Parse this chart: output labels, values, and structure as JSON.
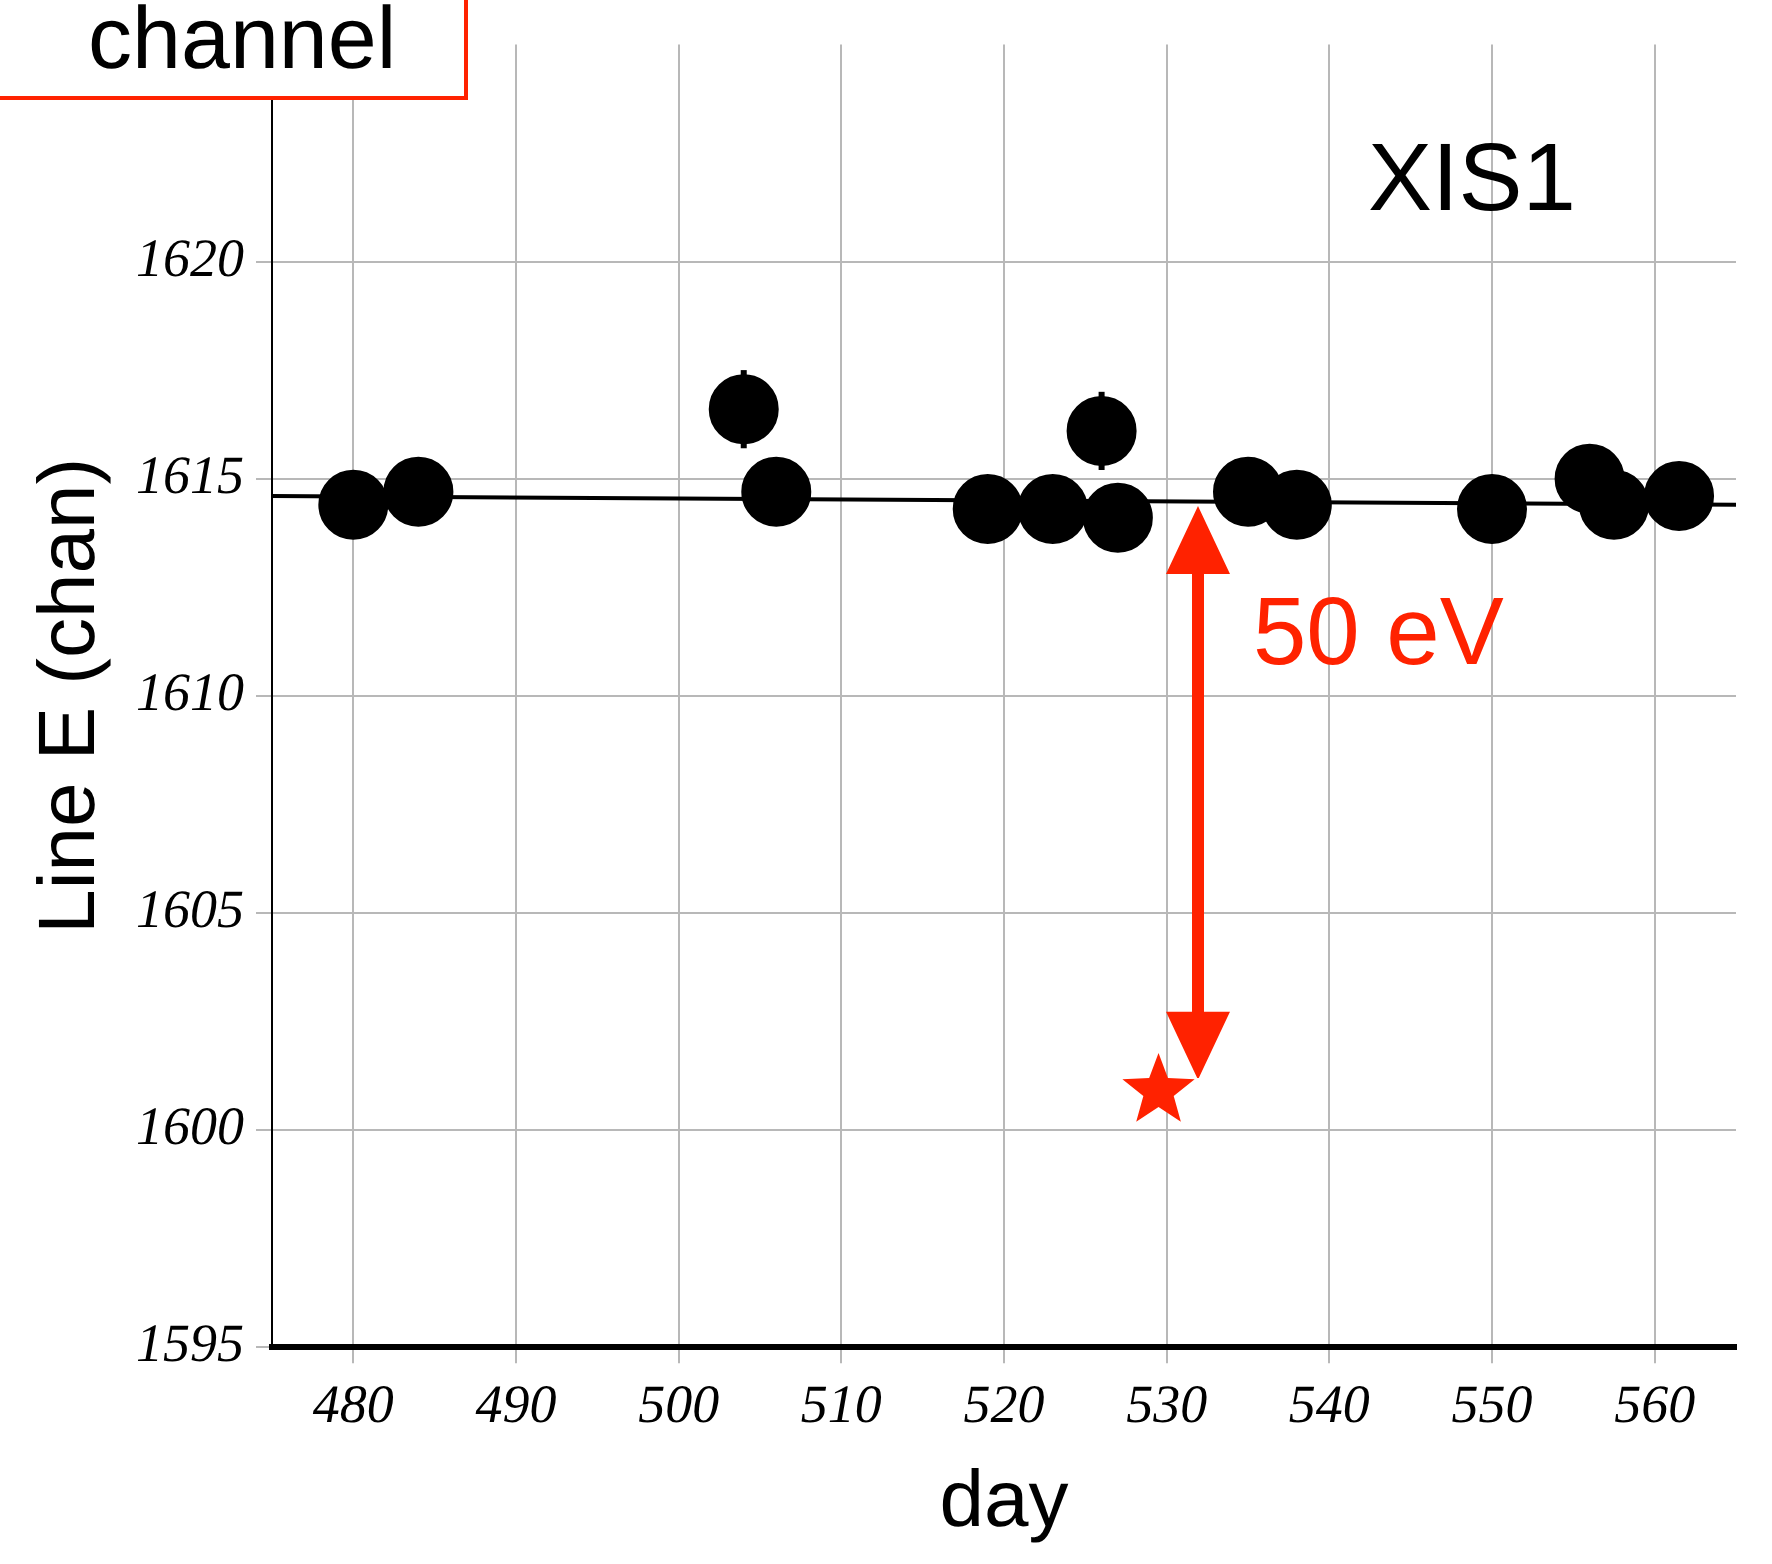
{
  "chart_data": {
    "type": "scatter",
    "xlabel": "day",
    "ylabel": "Line E (chan)",
    "xlim": [
      475,
      565
    ],
    "xticks": [
      480,
      490,
      500,
      510,
      520,
      530,
      540,
      550,
      560
    ],
    "ylim": [
      1595,
      1625
    ],
    "yticks": [
      1595,
      1600,
      1605,
      1610,
      1615,
      1620
    ],
    "grid": true,
    "legend": false,
    "series": [
      {
        "type": "line",
        "color": "#000000",
        "marker": "none",
        "line_style": "solid",
        "x": [
          475,
          565
        ],
        "values": [
          1614.6,
          1614.4
        ]
      },
      {
        "color": "#000000",
        "marker": "circle",
        "x": [
          480,
          484,
          504,
          506,
          519,
          523,
          526,
          527,
          535,
          538,
          550,
          556,
          557.5,
          561.5
        ],
        "values": [
          1614.4,
          1614.7,
          1616.6,
          1614.7,
          1614.3,
          1614.3,
          1616.1,
          1614.1,
          1614.7,
          1614.4,
          1614.3,
          1615.0,
          1614.4,
          1614.6
        ],
        "errors": [
          null,
          null,
          0.9,
          null,
          null,
          null,
          0.9,
          null,
          null,
          null,
          null,
          null,
          null,
          null
        ]
      },
      {
        "color": "#ff2200",
        "marker": "star",
        "x": [
          529.5
        ],
        "values": [
          1600.9
        ]
      }
    ],
    "annotations": [
      "channel",
      "XIS1",
      "50 eV"
    ]
  }
}
